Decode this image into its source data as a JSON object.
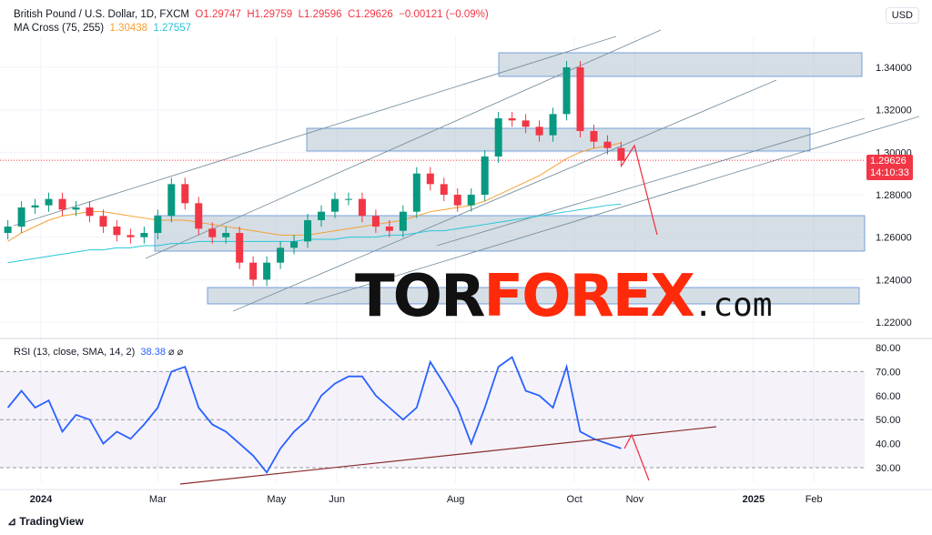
{
  "header": {
    "symbol": "British Pound / U.S. Dollar, 1D, FXCM",
    "open": "O1.29747",
    "high": "H1.29759",
    "low": "L1.29596",
    "close": "C1.29626",
    "change": "−0.00121 (−0.09%)",
    "ma_label": "MA Cross (75, 255)",
    "ma_fast": "1.30438",
    "ma_slow": "1.27557"
  },
  "currency": "USD",
  "last_price": "1.29626",
  "countdown": "14:10:33",
  "rsi_header": {
    "label": "RSI (13, close, SMA, 14, 2)",
    "value": "38.38"
  },
  "logo": {
    "part1": "TOR",
    "part2": "FOREX",
    "part3": ".com"
  },
  "footer": "TradingView",
  "colors": {
    "up": "#089981",
    "down": "#f23645",
    "ma_fast": "#f7a034",
    "ma_slow": "#26c6da",
    "rsi": "#2962ff",
    "zone": "#b2c3cf"
  },
  "chart_data": [
    {
      "type": "candlestick",
      "ylim": [
        1.21,
        1.355
      ],
      "y_ticks": [
        "1.22000",
        "1.24000",
        "1.26000",
        "1.28000",
        "1.30000",
        "1.32000",
        "1.34000"
      ],
      "x_ticks": [
        {
          "label": "2024",
          "date": "2024-01-01"
        },
        {
          "label": "Mar",
          "date": "2024-03-01"
        },
        {
          "label": "May",
          "date": "2024-05-01"
        },
        {
          "label": "Jun",
          "date": "2024-06-01"
        },
        {
          "label": "Aug",
          "date": "2024-08-01"
        },
        {
          "label": "Oct",
          "date": "2024-10-01"
        },
        {
          "label": "Nov",
          "date": "2024-11-01"
        },
        {
          "label": "2025",
          "date": "2025-01-01"
        },
        {
          "label": "Feb",
          "date": "2025-02-01"
        }
      ],
      "dates": [
        "2023-12-15",
        "2023-12-22",
        "2023-12-29",
        "2024-01-05",
        "2024-01-12",
        "2024-01-19",
        "2024-01-26",
        "2024-02-02",
        "2024-02-09",
        "2024-02-16",
        "2024-02-23",
        "2024-03-01",
        "2024-03-08",
        "2024-03-15",
        "2024-03-22",
        "2024-03-29",
        "2024-04-05",
        "2024-04-12",
        "2024-04-19",
        "2024-04-26",
        "2024-05-03",
        "2024-05-10",
        "2024-05-17",
        "2024-05-24",
        "2024-05-31",
        "2024-06-07",
        "2024-06-14",
        "2024-06-21",
        "2024-06-28",
        "2024-07-05",
        "2024-07-12",
        "2024-07-19",
        "2024-07-26",
        "2024-08-02",
        "2024-08-09",
        "2024-08-16",
        "2024-08-23",
        "2024-08-30",
        "2024-09-06",
        "2024-09-13",
        "2024-09-20",
        "2024-09-27",
        "2024-10-04",
        "2024-10-11",
        "2024-10-18",
        "2024-10-25"
      ],
      "close": [
        1.265,
        1.274,
        1.275,
        1.278,
        1.273,
        1.274,
        1.27,
        1.265,
        1.261,
        1.26,
        1.262,
        1.27,
        1.285,
        1.276,
        1.264,
        1.26,
        1.262,
        1.248,
        1.24,
        1.248,
        1.255,
        1.258,
        1.268,
        1.272,
        1.278,
        1.278,
        1.27,
        1.265,
        1.263,
        1.272,
        1.29,
        1.285,
        1.28,
        1.275,
        1.28,
        1.298,
        1.316,
        1.315,
        1.312,
        1.308,
        1.318,
        1.34,
        1.31,
        1.305,
        1.302,
        1.296
      ],
      "series": [
        {
          "name": "MA 75",
          "values": [
            1.258,
            1.262,
            1.265,
            1.268,
            1.27,
            1.271,
            1.272,
            1.272,
            1.271,
            1.27,
            1.269,
            1.268,
            1.268,
            1.268,
            1.267,
            1.266,
            1.265,
            1.264,
            1.263,
            1.262,
            1.261,
            1.261,
            1.261,
            1.262,
            1.263,
            1.264,
            1.265,
            1.266,
            1.267,
            1.268,
            1.27,
            1.272,
            1.273,
            1.274,
            1.275,
            1.277,
            1.28,
            1.283,
            1.286,
            1.289,
            1.293,
            1.297,
            1.3,
            1.302,
            1.303,
            1.3044
          ]
        },
        {
          "name": "MA 255",
          "values": [
            1.248,
            1.249,
            1.25,
            1.251,
            1.252,
            1.253,
            1.254,
            1.254,
            1.255,
            1.255,
            1.256,
            1.256,
            1.257,
            1.257,
            1.258,
            1.258,
            1.258,
            1.258,
            1.258,
            1.258,
            1.258,
            1.258,
            1.259,
            1.259,
            1.259,
            1.26,
            1.26,
            1.26,
            1.261,
            1.261,
            1.262,
            1.263,
            1.263,
            1.264,
            1.265,
            1.266,
            1.267,
            1.268,
            1.269,
            1.27,
            1.271,
            1.272,
            1.273,
            1.274,
            1.275,
            1.2756
          ]
        }
      ]
    },
    {
      "type": "line",
      "title": "RSI (13, close, SMA, 14, 2)",
      "ylim": [
        25,
        82
      ],
      "y_ticks": [
        "30.00",
        "40.00",
        "50.00",
        "60.00",
        "70.00",
        "80.00"
      ],
      "values": [
        55,
        62,
        55,
        58,
        45,
        52,
        50,
        40,
        45,
        42,
        48,
        55,
        70,
        72,
        55,
        48,
        45,
        40,
        35,
        28,
        38,
        45,
        50,
        60,
        65,
        68,
        68,
        60,
        55,
        50,
        55,
        74,
        65,
        55,
        40,
        55,
        72,
        76,
        62,
        60,
        55,
        72,
        45,
        42,
        40,
        38
      ]
    }
  ]
}
